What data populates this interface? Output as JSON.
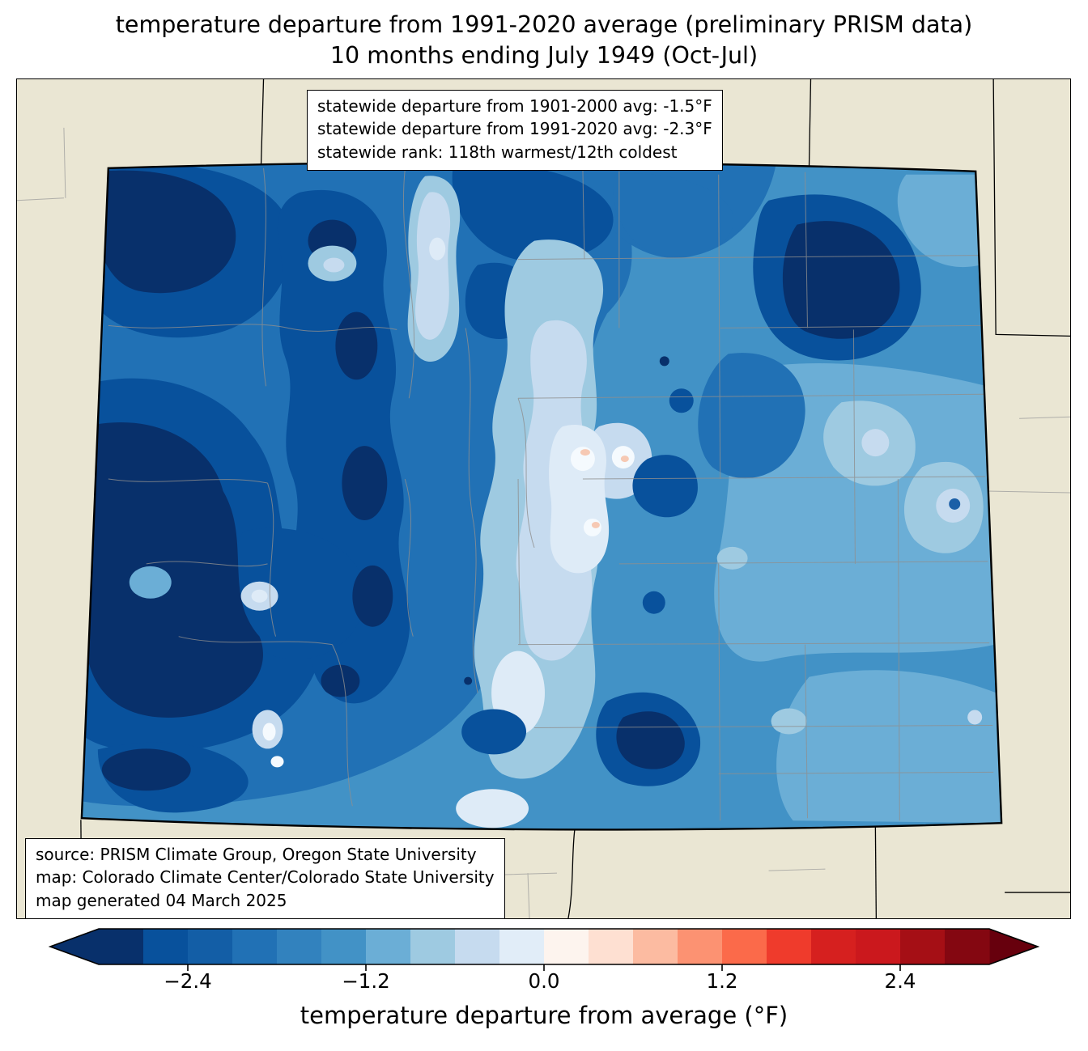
{
  "title": {
    "line1": "temperature departure from 1991-2020 average (preliminary PRISM data)",
    "line2": "10 months ending July 1949 (Oct-Jul)"
  },
  "stats_box": {
    "line1": "statewide departure from 1901-2000 avg: -1.5°F",
    "line2": "statewide departure from 1991-2020 avg: -2.3°F",
    "line3": "statewide rank: 118th warmest/12th coldest"
  },
  "source_box": {
    "line1": "source: PRISM Climate Group, Oregon State University",
    "line2": "map: Colorado Climate Center/Colorado State University",
    "line3": "map generated 04 March 2025"
  },
  "colorbar": {
    "label": "temperature departure from average (°F)",
    "ticks": [
      "−2.4",
      "−1.2",
      "0.0",
      "1.2",
      "2.4"
    ],
    "tick_values": [
      -2.4,
      -1.2,
      0.0,
      1.2,
      2.4
    ],
    "range": [
      -3.0,
      3.0
    ],
    "step": 0.3,
    "under_color": "#08306b",
    "over_color": "#67000d",
    "colors": [
      "#08306b",
      "#08519c",
      "#135ea6",
      "#2171b5",
      "#3282be",
      "#4292c6",
      "#6baed6",
      "#9ecae1",
      "#c6dbef",
      "#e1edf8",
      "#fdf4ee",
      "#fee0d2",
      "#fcbba1",
      "#fc9272",
      "#fb6a4a",
      "#ef3b2c",
      "#d6201f",
      "#cb181d",
      "#a50f15",
      "#840711"
    ]
  },
  "map": {
    "region": "Colorado",
    "background_color": "#eae6d3",
    "state_border_color": "#000000",
    "county_line_color": "#8f8f8f"
  }
}
